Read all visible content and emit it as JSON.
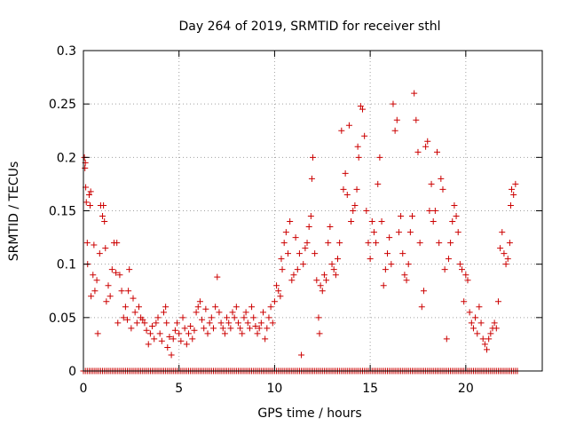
{
  "chart_data": {
    "type": "scatter",
    "title": "Day 264 of 2019, SRMTID for receiver sthl",
    "xlabel": "GPS time / hours",
    "ylabel": "SRMTID / TECUs",
    "xlim": [
      0,
      24
    ],
    "ylim": [
      0,
      0.3
    ],
    "grid": true,
    "legend": "none",
    "marker": "+",
    "marker_color": "#cc0000",
    "xticks": [
      0,
      5,
      10,
      15,
      20
    ],
    "xtick_labels": [
      "0",
      "5",
      "10",
      "15",
      "20"
    ],
    "yticks": [
      0,
      0.05,
      0.1,
      0.15,
      0.2,
      0.25,
      0.3
    ],
    "ytick_labels": [
      "0",
      "0.05",
      "0.1",
      "0.15",
      "0.2",
      "0.25",
      "0.3"
    ],
    "series": [
      {
        "name": "SRMTID",
        "points": [
          [
            0.05,
            0.2
          ],
          [
            0.08,
            0.19
          ],
          [
            0.1,
            0.195
          ],
          [
            0.12,
            0.172
          ],
          [
            0.15,
            0.158
          ],
          [
            0.2,
            0.12
          ],
          [
            0.22,
            0.1
          ],
          [
            0.3,
            0.165
          ],
          [
            0.35,
            0.155
          ],
          [
            0.38,
            0.168
          ],
          [
            0.4,
            0.07
          ],
          [
            0.5,
            0.09
          ],
          [
            0.55,
            0.118
          ],
          [
            0.6,
            0.075
          ],
          [
            0.7,
            0.085
          ],
          [
            0.75,
            0.035
          ],
          [
            0.85,
            0.11
          ],
          [
            0.9,
            0.155
          ],
          [
            1.0,
            0.145
          ],
          [
            1.05,
            0.155
          ],
          [
            1.1,
            0.14
          ],
          [
            1.15,
            0.115
          ],
          [
            1.2,
            0.065
          ],
          [
            1.3,
            0.08
          ],
          [
            1.4,
            0.07
          ],
          [
            1.5,
            0.095
          ],
          [
            1.6,
            0.12
          ],
          [
            1.7,
            0.092
          ],
          [
            1.75,
            0.12
          ],
          [
            1.8,
            0.045
          ],
          [
            1.9,
            0.09
          ],
          [
            2.0,
            0.075
          ],
          [
            2.1,
            0.05
          ],
          [
            2.2,
            0.06
          ],
          [
            2.3,
            0.048
          ],
          [
            2.35,
            0.075
          ],
          [
            2.4,
            0.095
          ],
          [
            2.5,
            0.04
          ],
          [
            2.6,
            0.068
          ],
          [
            2.7,
            0.055
          ],
          [
            2.8,
            0.045
          ],
          [
            2.9,
            0.06
          ],
          [
            3.0,
            0.05
          ],
          [
            3.1,
            0.048
          ],
          [
            3.2,
            0.045
          ],
          [
            3.3,
            0.038
          ],
          [
            3.4,
            0.025
          ],
          [
            3.5,
            0.035
          ],
          [
            3.6,
            0.042
          ],
          [
            3.7,
            0.03
          ],
          [
            3.8,
            0.045
          ],
          [
            3.9,
            0.05
          ],
          [
            4.0,
            0.035
          ],
          [
            4.1,
            0.028
          ],
          [
            4.2,
            0.055
          ],
          [
            4.3,
            0.06
          ],
          [
            4.35,
            0.045
          ],
          [
            4.4,
            0.022
          ],
          [
            4.5,
            0.032
          ],
          [
            4.6,
            0.015
          ],
          [
            4.7,
            0.03
          ],
          [
            4.8,
            0.038
          ],
          [
            4.9,
            0.045
          ],
          [
            5.0,
            0.035
          ],
          [
            5.1,
            0.028
          ],
          [
            5.2,
            0.05
          ],
          [
            5.3,
            0.04
          ],
          [
            5.4,
            0.025
          ],
          [
            5.5,
            0.035
          ],
          [
            5.6,
            0.042
          ],
          [
            5.7,
            0.03
          ],
          [
            5.8,
            0.038
          ],
          [
            5.9,
            0.055
          ],
          [
            6.0,
            0.06
          ],
          [
            6.1,
            0.065
          ],
          [
            6.2,
            0.048
          ],
          [
            6.3,
            0.04
          ],
          [
            6.4,
            0.058
          ],
          [
            6.5,
            0.035
          ],
          [
            6.6,
            0.045
          ],
          [
            6.7,
            0.05
          ],
          [
            6.8,
            0.04
          ],
          [
            6.9,
            0.06
          ],
          [
            7.0,
            0.088
          ],
          [
            7.1,
            0.055
          ],
          [
            7.2,
            0.045
          ],
          [
            7.3,
            0.04
          ],
          [
            7.4,
            0.035
          ],
          [
            7.5,
            0.05
          ],
          [
            7.6,
            0.045
          ],
          [
            7.7,
            0.04
          ],
          [
            7.8,
            0.055
          ],
          [
            7.9,
            0.05
          ],
          [
            8.0,
            0.06
          ],
          [
            8.1,
            0.045
          ],
          [
            8.2,
            0.04
          ],
          [
            8.3,
            0.035
          ],
          [
            8.4,
            0.05
          ],
          [
            8.5,
            0.055
          ],
          [
            8.6,
            0.045
          ],
          [
            8.7,
            0.04
          ],
          [
            8.8,
            0.06
          ],
          [
            8.9,
            0.05
          ],
          [
            9.0,
            0.042
          ],
          [
            9.1,
            0.035
          ],
          [
            9.2,
            0.04
          ],
          [
            9.3,
            0.045
          ],
          [
            9.4,
            0.055
          ],
          [
            9.5,
            0.03
          ],
          [
            9.6,
            0.04
          ],
          [
            9.7,
            0.05
          ],
          [
            9.8,
            0.06
          ],
          [
            9.9,
            0.045
          ],
          [
            10.0,
            0.065
          ],
          [
            10.1,
            0.08
          ],
          [
            10.2,
            0.075
          ],
          [
            10.3,
            0.07
          ],
          [
            10.35,
            0.105
          ],
          [
            10.4,
            0.095
          ],
          [
            10.5,
            0.12
          ],
          [
            10.6,
            0.13
          ],
          [
            10.7,
            0.11
          ],
          [
            10.8,
            0.14
          ],
          [
            10.9,
            0.085
          ],
          [
            11.0,
            0.09
          ],
          [
            11.1,
            0.125
          ],
          [
            11.2,
            0.095
          ],
          [
            11.3,
            0.11
          ],
          [
            11.4,
            0.015
          ],
          [
            11.5,
            0.1
          ],
          [
            11.6,
            0.115
          ],
          [
            11.7,
            0.12
          ],
          [
            11.8,
            0.135
          ],
          [
            11.9,
            0.145
          ],
          [
            11.95,
            0.18
          ],
          [
            12.0,
            0.2
          ],
          [
            12.1,
            0.11
          ],
          [
            12.2,
            0.085
          ],
          [
            12.3,
            0.05
          ],
          [
            12.35,
            0.035
          ],
          [
            12.4,
            0.08
          ],
          [
            12.5,
            0.075
          ],
          [
            12.6,
            0.09
          ],
          [
            12.7,
            0.085
          ],
          [
            12.8,
            0.12
          ],
          [
            12.9,
            0.135
          ],
          [
            13.0,
            0.1
          ],
          [
            13.1,
            0.095
          ],
          [
            13.2,
            0.09
          ],
          [
            13.3,
            0.105
          ],
          [
            13.4,
            0.12
          ],
          [
            13.5,
            0.225
          ],
          [
            13.6,
            0.17
          ],
          [
            13.7,
            0.185
          ],
          [
            13.8,
            0.165
          ],
          [
            13.9,
            0.23
          ],
          [
            14.0,
            0.14
          ],
          [
            14.1,
            0.15
          ],
          [
            14.2,
            0.155
          ],
          [
            14.3,
            0.17
          ],
          [
            14.35,
            0.21
          ],
          [
            14.4,
            0.2
          ],
          [
            14.5,
            0.248
          ],
          [
            14.6,
            0.245
          ],
          [
            14.7,
            0.22
          ],
          [
            14.8,
            0.15
          ],
          [
            14.9,
            0.12
          ],
          [
            15.0,
            0.105
          ],
          [
            15.1,
            0.14
          ],
          [
            15.2,
            0.13
          ],
          [
            15.3,
            0.12
          ],
          [
            15.4,
            0.175
          ],
          [
            15.5,
            0.2
          ],
          [
            15.6,
            0.14
          ],
          [
            15.7,
            0.08
          ],
          [
            15.8,
            0.095
          ],
          [
            15.9,
            0.11
          ],
          [
            16.0,
            0.125
          ],
          [
            16.1,
            0.1
          ],
          [
            16.2,
            0.25
          ],
          [
            16.3,
            0.225
          ],
          [
            16.4,
            0.235
          ],
          [
            16.5,
            0.13
          ],
          [
            16.6,
            0.145
          ],
          [
            16.7,
            0.11
          ],
          [
            16.8,
            0.09
          ],
          [
            16.9,
            0.085
          ],
          [
            17.0,
            0.1
          ],
          [
            17.1,
            0.13
          ],
          [
            17.2,
            0.145
          ],
          [
            17.3,
            0.26
          ],
          [
            17.4,
            0.235
          ],
          [
            17.5,
            0.205
          ],
          [
            17.6,
            0.12
          ],
          [
            17.7,
            0.06
          ],
          [
            17.8,
            0.075
          ],
          [
            17.9,
            0.21
          ],
          [
            18.0,
            0.215
          ],
          [
            18.1,
            0.15
          ],
          [
            18.2,
            0.175
          ],
          [
            18.3,
            0.14
          ],
          [
            18.4,
            0.15
          ],
          [
            18.5,
            0.205
          ],
          [
            18.6,
            0.12
          ],
          [
            18.7,
            0.18
          ],
          [
            18.8,
            0.17
          ],
          [
            18.9,
            0.095
          ],
          [
            19.0,
            0.03
          ],
          [
            19.1,
            0.105
          ],
          [
            19.2,
            0.12
          ],
          [
            19.3,
            0.14
          ],
          [
            19.4,
            0.155
          ],
          [
            19.5,
            0.145
          ],
          [
            19.6,
            0.13
          ],
          [
            19.7,
            0.1
          ],
          [
            19.8,
            0.095
          ],
          [
            19.9,
            0.065
          ],
          [
            20.0,
            0.09
          ],
          [
            20.1,
            0.085
          ],
          [
            20.2,
            0.055
          ],
          [
            20.3,
            0.045
          ],
          [
            20.4,
            0.04
          ],
          [
            20.5,
            0.05
          ],
          [
            20.6,
            0.035
          ],
          [
            20.7,
            0.06
          ],
          [
            20.8,
            0.045
          ],
          [
            20.9,
            0.03
          ],
          [
            21.0,
            0.025
          ],
          [
            21.1,
            0.02
          ],
          [
            21.2,
            0.03
          ],
          [
            21.3,
            0.035
          ],
          [
            21.4,
            0.04
          ],
          [
            21.5,
            0.045
          ],
          [
            21.6,
            0.04
          ],
          [
            21.7,
            0.065
          ],
          [
            21.8,
            0.115
          ],
          [
            21.9,
            0.13
          ],
          [
            22.0,
            0.11
          ],
          [
            22.1,
            0.1
          ],
          [
            22.2,
            0.105
          ],
          [
            22.3,
            0.12
          ],
          [
            22.35,
            0.155
          ],
          [
            22.4,
            0.17
          ],
          [
            22.5,
            0.165
          ],
          [
            22.6,
            0.175
          ]
        ]
      },
      {
        "name": "zero baseline",
        "x_range": [
          0,
          22.7
        ],
        "x_step": 0.1,
        "value": 0
      }
    ]
  }
}
